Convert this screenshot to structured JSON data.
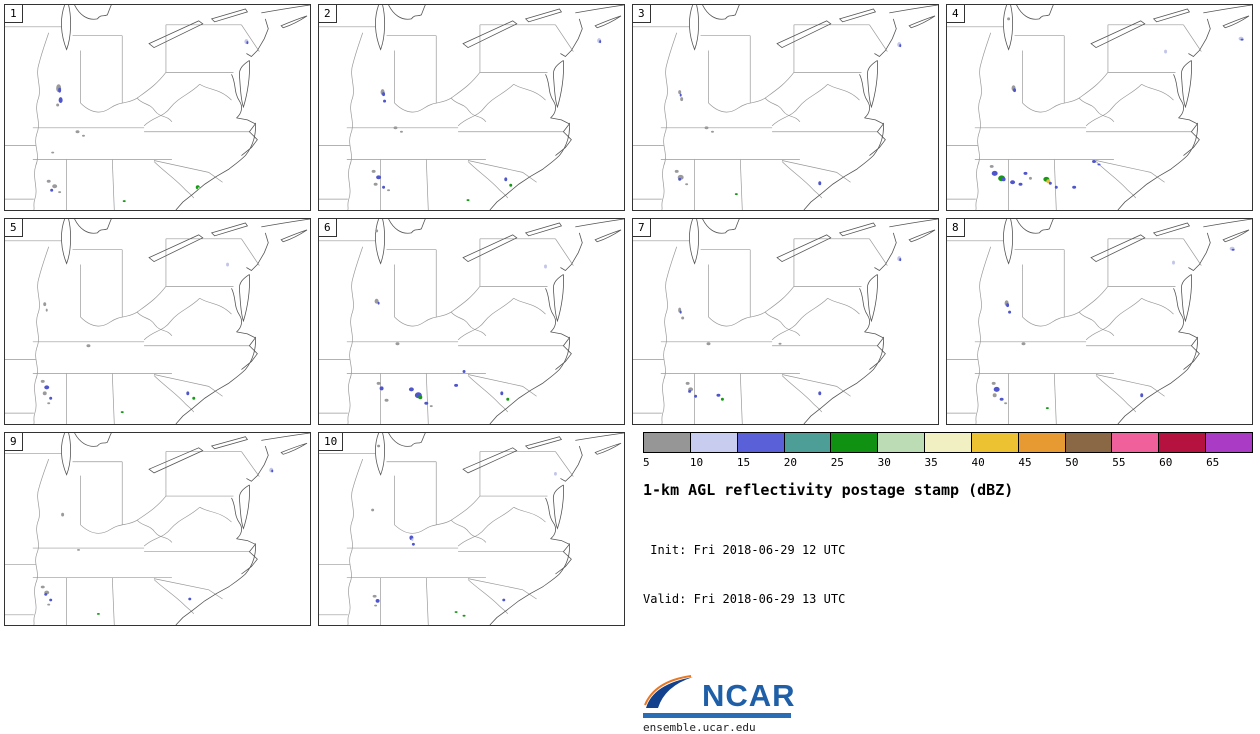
{
  "panels": [
    {
      "label": "1",
      "blobs": [
        [
          54,
          84,
          5,
          8,
          "gray"
        ],
        [
          55,
          86,
          3,
          5,
          "blue"
        ],
        [
          56,
          96,
          4,
          6,
          "blue"
        ],
        [
          53,
          101,
          3,
          3,
          "gray"
        ],
        [
          73,
          128,
          4,
          3,
          "gray"
        ],
        [
          79,
          132,
          3,
          2,
          "gray"
        ],
        [
          48,
          149,
          3,
          2,
          "gray"
        ],
        [
          44,
          178,
          4,
          3,
          "gray"
        ],
        [
          50,
          183,
          5,
          4,
          "gray"
        ],
        [
          47,
          187,
          3,
          3,
          "blue"
        ],
        [
          55,
          189,
          3,
          2,
          "gray"
        ],
        [
          194,
          184,
          4,
          4,
          "green"
        ],
        [
          195,
          185,
          2,
          2,
          "lgreen"
        ],
        [
          243,
          37,
          4,
          5,
          "lblue"
        ],
        [
          244,
          38,
          2,
          3,
          "blue"
        ],
        [
          120,
          198,
          3,
          2,
          "green"
        ]
      ]
    },
    {
      "label": "2",
      "blobs": [
        [
          64,
          88,
          4,
          6,
          "gray"
        ],
        [
          65,
          90,
          3,
          4,
          "blue"
        ],
        [
          66,
          97,
          3,
          3,
          "blue"
        ],
        [
          77,
          124,
          4,
          3,
          "gray"
        ],
        [
          83,
          128,
          3,
          2,
          "gray"
        ],
        [
          55,
          168,
          4,
          3,
          "gray"
        ],
        [
          60,
          174,
          5,
          4,
          "blue"
        ],
        [
          57,
          181,
          4,
          3,
          "gray"
        ],
        [
          65,
          184,
          3,
          3,
          "blue"
        ],
        [
          70,
          187,
          3,
          2,
          "gray"
        ],
        [
          150,
          197,
          3,
          2,
          "green"
        ],
        [
          188,
          176,
          3,
          4,
          "blue"
        ],
        [
          193,
          182,
          3,
          3,
          "green"
        ],
        [
          282,
          36,
          4,
          5,
          "lblue"
        ],
        [
          283,
          37,
          2,
          3,
          "blue"
        ]
      ]
    },
    {
      "label": "3",
      "blobs": [
        [
          47,
          88,
          3,
          4,
          "gray"
        ],
        [
          48,
          91,
          2,
          3,
          "blue"
        ],
        [
          49,
          95,
          3,
          4,
          "gray"
        ],
        [
          74,
          124,
          4,
          3,
          "gray"
        ],
        [
          80,
          128,
          3,
          2,
          "gray"
        ],
        [
          44,
          168,
          4,
          3,
          "gray"
        ],
        [
          48,
          174,
          6,
          5,
          "gray"
        ],
        [
          47,
          176,
          3,
          3,
          "blue"
        ],
        [
          54,
          181,
          3,
          2,
          "gray"
        ],
        [
          104,
          191,
          3,
          2,
          "green"
        ],
        [
          188,
          180,
          3,
          4,
          "blue"
        ],
        [
          268,
          40,
          4,
          5,
          "lblue"
        ],
        [
          269,
          41,
          2,
          3,
          "blue"
        ]
      ]
    },
    {
      "label": "4",
      "blobs": [
        [
          67,
          84,
          4,
          6,
          "gray"
        ],
        [
          68,
          86,
          3,
          4,
          "blue"
        ],
        [
          45,
          163,
          4,
          3,
          "gray"
        ],
        [
          48,
          170,
          6,
          5,
          "blue"
        ],
        [
          55,
          175,
          7,
          6,
          "green"
        ],
        [
          57,
          176,
          4,
          4,
          "blue"
        ],
        [
          66,
          179,
          5,
          4,
          "blue"
        ],
        [
          74,
          181,
          4,
          3,
          "blue"
        ],
        [
          79,
          170,
          4,
          3,
          "blue"
        ],
        [
          84,
          175,
          3,
          3,
          "gray"
        ],
        [
          100,
          176,
          6,
          5,
          "green"
        ],
        [
          102,
          178,
          4,
          4,
          "yellow"
        ],
        [
          104,
          180,
          3,
          3,
          "blue"
        ],
        [
          110,
          184,
          3,
          3,
          "blue"
        ],
        [
          128,
          184,
          4,
          3,
          "blue"
        ],
        [
          148,
          158,
          4,
          3,
          "blue"
        ],
        [
          153,
          161,
          3,
          2,
          "blue"
        ],
        [
          220,
          47,
          3,
          4,
          "lblue"
        ],
        [
          296,
          34,
          5,
          4,
          "lblue"
        ],
        [
          297,
          35,
          3,
          2,
          "blue"
        ],
        [
          62,
          14,
          3,
          3,
          "gray"
        ]
      ]
    },
    {
      "label": "5",
      "blobs": [
        [
          40,
          86,
          3,
          4,
          "gray"
        ],
        [
          42,
          92,
          2,
          3,
          "gray"
        ],
        [
          84,
          128,
          4,
          3,
          "gray"
        ],
        [
          38,
          164,
          4,
          3,
          "gray"
        ],
        [
          42,
          170,
          5,
          4,
          "blue"
        ],
        [
          40,
          176,
          4,
          4,
          "gray"
        ],
        [
          46,
          181,
          3,
          3,
          "blue"
        ],
        [
          44,
          186,
          3,
          2,
          "gray"
        ],
        [
          118,
          195,
          3,
          2,
          "green"
        ],
        [
          184,
          176,
          3,
          4,
          "blue"
        ],
        [
          190,
          181,
          3,
          3,
          "green"
        ],
        [
          224,
          46,
          3,
          4,
          "lblue"
        ]
      ]
    },
    {
      "label": "6",
      "blobs": [
        [
          58,
          83,
          4,
          5,
          "gray"
        ],
        [
          60,
          85,
          2,
          3,
          "blue"
        ],
        [
          79,
          126,
          4,
          3,
          "gray"
        ],
        [
          60,
          166,
          4,
          3,
          "gray"
        ],
        [
          63,
          171,
          4,
          4,
          "blue"
        ],
        [
          68,
          183,
          4,
          3,
          "gray"
        ],
        [
          93,
          172,
          5,
          4,
          "blue"
        ],
        [
          100,
          178,
          7,
          6,
          "blue"
        ],
        [
          102,
          180,
          4,
          4,
          "green"
        ],
        [
          108,
          186,
          4,
          3,
          "blue"
        ],
        [
          113,
          189,
          3,
          2,
          "gray"
        ],
        [
          138,
          168,
          4,
          3,
          "blue"
        ],
        [
          146,
          154,
          3,
          3,
          "blue"
        ],
        [
          184,
          176,
          3,
          4,
          "blue"
        ],
        [
          190,
          182,
          3,
          3,
          "green"
        ],
        [
          228,
          48,
          3,
          4,
          "lblue"
        ],
        [
          58,
          12,
          3,
          3,
          "gray"
        ]
      ]
    },
    {
      "label": "7",
      "blobs": [
        [
          47,
          92,
          3,
          5,
          "gray"
        ],
        [
          48,
          94,
          2,
          3,
          "blue"
        ],
        [
          50,
          100,
          3,
          3,
          "gray"
        ],
        [
          76,
          126,
          4,
          3,
          "gray"
        ],
        [
          55,
          166,
          4,
          3,
          "gray"
        ],
        [
          58,
          172,
          5,
          4,
          "gray"
        ],
        [
          57,
          174,
          3,
          3,
          "blue"
        ],
        [
          63,
          179,
          3,
          3,
          "blue"
        ],
        [
          86,
          178,
          4,
          3,
          "blue"
        ],
        [
          90,
          182,
          3,
          3,
          "green"
        ],
        [
          188,
          176,
          3,
          4,
          "blue"
        ],
        [
          268,
          40,
          4,
          5,
          "lblue"
        ],
        [
          269,
          41,
          2,
          3,
          "blue"
        ],
        [
          148,
          126,
          3,
          2,
          "gray"
        ]
      ]
    },
    {
      "label": "8",
      "blobs": [
        [
          60,
          85,
          4,
          6,
          "gray"
        ],
        [
          61,
          87,
          3,
          4,
          "blue"
        ],
        [
          63,
          94,
          3,
          3,
          "blue"
        ],
        [
          77,
          126,
          4,
          3,
          "gray"
        ],
        [
          47,
          166,
          4,
          3,
          "gray"
        ],
        [
          50,
          172,
          6,
          5,
          "blue"
        ],
        [
          48,
          178,
          4,
          4,
          "gray"
        ],
        [
          55,
          182,
          4,
          3,
          "blue"
        ],
        [
          59,
          186,
          3,
          2,
          "gray"
        ],
        [
          101,
          191,
          3,
          2,
          "green"
        ],
        [
          196,
          178,
          3,
          4,
          "blue"
        ],
        [
          287,
          30,
          5,
          4,
          "lblue"
        ],
        [
          288,
          31,
          3,
          2,
          "blue"
        ],
        [
          228,
          44,
          3,
          4,
          "lblue"
        ]
      ]
    },
    {
      "label": "9",
      "blobs": [
        [
          58,
          88,
          3,
          4,
          "gray"
        ],
        [
          74,
          126,
          3,
          2,
          "gray"
        ],
        [
          38,
          166,
          4,
          3,
          "gray"
        ],
        [
          42,
          172,
          5,
          4,
          "gray"
        ],
        [
          41,
          174,
          3,
          3,
          "blue"
        ],
        [
          46,
          180,
          3,
          3,
          "blue"
        ],
        [
          44,
          185,
          3,
          2,
          "gray"
        ],
        [
          94,
          195,
          3,
          2,
          "green"
        ],
        [
          186,
          179,
          3,
          3,
          "blue"
        ],
        [
          268,
          40,
          4,
          5,
          "lblue"
        ],
        [
          269,
          41,
          2,
          3,
          "blue"
        ]
      ]
    },
    {
      "label": "10",
      "blobs": [
        [
          54,
          83,
          3,
          3,
          "gray"
        ],
        [
          93,
          113,
          4,
          5,
          "blue"
        ],
        [
          94,
          115,
          2,
          3,
          "lblue"
        ],
        [
          95,
          120,
          3,
          3,
          "blue"
        ],
        [
          56,
          176,
          4,
          3,
          "gray"
        ],
        [
          59,
          181,
          4,
          4,
          "blue"
        ],
        [
          57,
          186,
          3,
          2,
          "gray"
        ],
        [
          138,
          193,
          3,
          2,
          "green"
        ],
        [
          146,
          197,
          3,
          2,
          "green"
        ],
        [
          186,
          180,
          3,
          3,
          "blue"
        ],
        [
          238,
          44,
          3,
          4,
          "lblue"
        ],
        [
          60,
          14,
          3,
          3,
          "gray"
        ]
      ]
    }
  ],
  "palette": {
    "gray": "#9a9a9a",
    "lblue": "#c2c6ea",
    "blue": "#4f55cb",
    "teal": "#3f968a",
    "green": "#179917",
    "lgreen": "#b7dcb2",
    "yellow": "#e8bb37"
  },
  "colorbar": {
    "tick_labels": [
      "5",
      "10",
      "15",
      "20",
      "25",
      "30",
      "35",
      "40",
      "45",
      "50",
      "55",
      "60",
      "65"
    ],
    "colors": [
      "#969696",
      "#c8ccee",
      "#5a60d8",
      "#4d9e96",
      "#119111",
      "#bcdcb6",
      "#f0f0c2",
      "#ecc132",
      "#e89a32",
      "#8a6846",
      "#f0609a",
      "#b5123f",
      "#a93bc4"
    ]
  },
  "legend": {
    "title": "1-km AGL reflectivity postage stamp (dBZ)",
    "init_line": " Init: Fri 2018-06-29 12 UTC",
    "valid_line": "Valid: Fri 2018-06-29 13 UTC"
  },
  "branding": {
    "logo_text": "NCAR",
    "url": "ensemble.ucar.edu",
    "logo_blue": "#1f5fa8",
    "bar_blue": "#2a6db5"
  }
}
